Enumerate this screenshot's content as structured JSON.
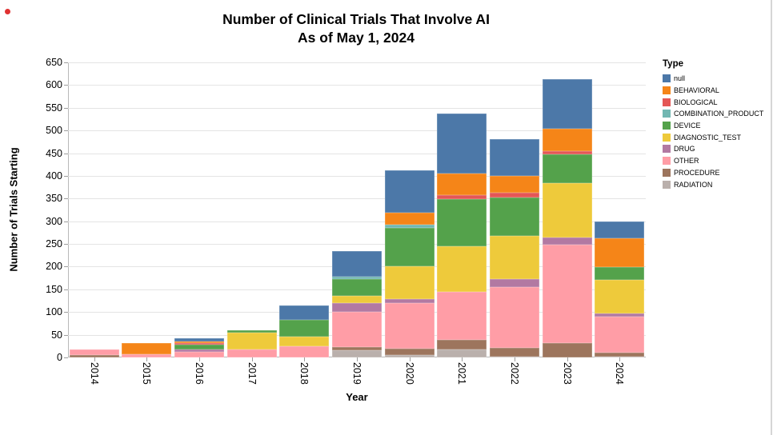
{
  "chart_data": {
    "type": "bar",
    "stacked": true,
    "title": "Number of Clinical Trials That Involve AI",
    "subtitle": "As of May 1, 2024",
    "xlabel": "Year",
    "ylabel": "Number of Trials Starting",
    "ylim": [
      0,
      650
    ],
    "ytick_interval": 50,
    "grid": true,
    "legend_title": "Type",
    "legend_position": "top-right",
    "categories": [
      "2014",
      "2015",
      "2016",
      "2017",
      "2018",
      "2019",
      "2020",
      "2021",
      "2022",
      "2023",
      "2024"
    ],
    "stack_order_bottom_to_top": [
      "RADIATION",
      "PROCEDURE",
      "OTHER",
      "DRUG",
      "DIAGNOSTIC_TEST",
      "DEVICE",
      "COMBINATION_PRODUCT",
      "BIOLOGICAL",
      "BEHAVIORAL",
      "null"
    ],
    "series": [
      {
        "name": "null",
        "color": "#4c78a8",
        "values": [
          0,
          0,
          6,
          0,
          31,
          57,
          93,
          132,
          81,
          110,
          38
        ]
      },
      {
        "name": "BEHAVIORAL",
        "color": "#f58518",
        "values": [
          0,
          24,
          4,
          0,
          0,
          0,
          27,
          48,
          38,
          48,
          63
        ]
      },
      {
        "name": "BIOLOGICAL",
        "color": "#e45756",
        "values": [
          0,
          0,
          4,
          0,
          0,
          0,
          0,
          8,
          9,
          8,
          0
        ]
      },
      {
        "name": "COMBINATION_PRODUCT",
        "color": "#72b7b2",
        "values": [
          0,
          0,
          0,
          0,
          0,
          5,
          6,
          0,
          0,
          0,
          0
        ]
      },
      {
        "name": "DEVICE",
        "color": "#54a24b",
        "values": [
          0,
          0,
          11,
          5,
          38,
          37,
          86,
          104,
          85,
          63,
          29
        ]
      },
      {
        "name": "DIAGNOSTIC_TEST",
        "color": "#eeca3b",
        "values": [
          0,
          0,
          0,
          37,
          21,
          16,
          71,
          100,
          95,
          119,
          73
        ]
      },
      {
        "name": "DRUG",
        "color": "#b279a2",
        "values": [
          0,
          0,
          4,
          0,
          0,
          19,
          9,
          0,
          18,
          16,
          7
        ]
      },
      {
        "name": "OTHER",
        "color": "#ff9da6",
        "values": [
          13,
          7,
          13,
          18,
          24,
          78,
          100,
          106,
          134,
          217,
          80
        ]
      },
      {
        "name": "PROCEDURE",
        "color": "#9d755d",
        "values": [
          5,
          0,
          0,
          0,
          0,
          8,
          14,
          21,
          19,
          32,
          8
        ]
      },
      {
        "name": "RADIATION",
        "color": "#bab0ac",
        "values": [
          0,
          0,
          0,
          0,
          0,
          15,
          6,
          18,
          2,
          0,
          2
        ]
      }
    ],
    "totals": [
      18,
      31,
      42,
      60,
      114,
      235,
      412,
      537,
      481,
      613,
      300
    ]
  }
}
